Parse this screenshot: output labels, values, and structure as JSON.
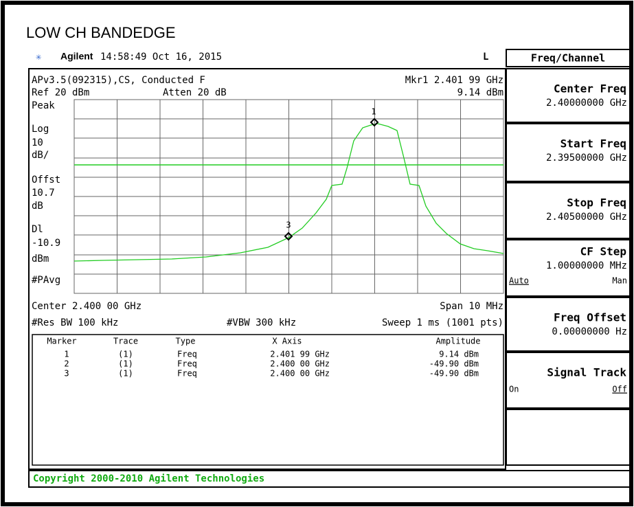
{
  "title": "LOW CH BANDEDGE",
  "header": {
    "brand": "Agilent",
    "time": "14:58:49  Oct 16, 2015",
    "mode": "L"
  },
  "screen": {
    "line1_left": "APv3.5(092315),CS, Conducted F",
    "line1_right": "Mkr1  2.401 99 GHz",
    "line2_left": "Ref 20 dBm",
    "line2_mid": "Atten 20 dB",
    "line2_right": "9.14 dBm",
    "side_labels": [
      "Peak",
      "Log",
      "10",
      "dB/",
      "Offst",
      "10.7",
      "dB",
      "Dl",
      "-10.9",
      "dBm",
      "#PAvg"
    ],
    "marker_labels": [
      "1",
      "3"
    ],
    "bottom1_left": "Center 2.400 00 GHz",
    "bottom1_right": "Span 10 MHz",
    "bottom2_left": "#Res BW 100 kHz",
    "bottom2_mid": "#VBW 300 kHz",
    "bottom2_right": "Sweep 1 ms (1001 pts)"
  },
  "table": {
    "headers": [
      "Marker",
      "Trace",
      "Type",
      "X Axis",
      "Amplitude"
    ],
    "rows": [
      [
        "1",
        "(1)",
        "Freq",
        "2.401 99 GHz",
        "9.14 dBm"
      ],
      [
        "2",
        "(1)",
        "Freq",
        "2.400 00 GHz",
        "-49.90 dBm"
      ],
      [
        "3",
        "(1)",
        "Freq",
        "2.400 00 GHz",
        "-49.90 dBm"
      ]
    ]
  },
  "footer": "Copyright 2000-2010 Agilent Technologies",
  "menu": {
    "title": "Freq/Channel",
    "keys": [
      {
        "label": "Center Freq",
        "value": "2.40000000 GHz"
      },
      {
        "label": "Start Freq",
        "value": "2.39500000 GHz"
      },
      {
        "label": "Stop Freq",
        "value": "2.40500000 GHz"
      },
      {
        "label": "CF Step",
        "value": "1.00000000 MHz",
        "left": "Auto",
        "right": "Man"
      },
      {
        "label": "Freq Offset",
        "value": "0.00000000  Hz"
      },
      {
        "label": "Signal Track",
        "left": "On",
        "right": "Off"
      }
    ]
  }
}
